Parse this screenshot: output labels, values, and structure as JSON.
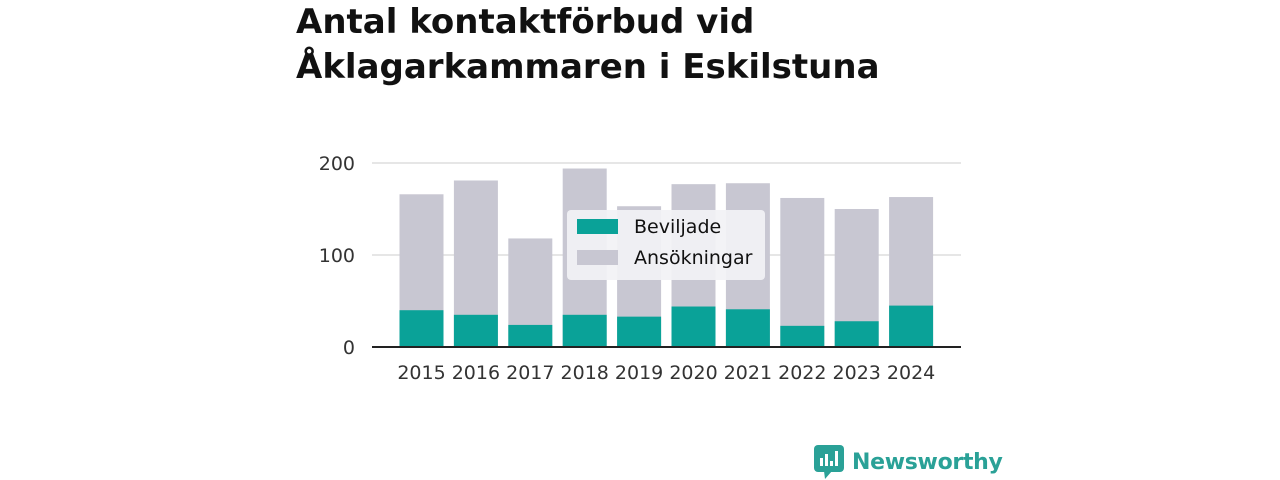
{
  "chart_data": {
    "type": "bar",
    "stacked": false,
    "title_lines": [
      "Antal kontaktförbud vid",
      "Åklagarkammaren i Eskilstuna"
    ],
    "categories": [
      "2015",
      "2016",
      "2017",
      "2018",
      "2019",
      "2020",
      "2021",
      "2022",
      "2023",
      "2024"
    ],
    "series": [
      {
        "name": "Beviljade",
        "color": "#0aa298",
        "values": [
          40,
          35,
          24,
          35,
          33,
          44,
          41,
          23,
          28,
          45
        ]
      },
      {
        "name": "Ansökningar",
        "color": "#c8c7d2",
        "values": [
          166,
          181,
          118,
          194,
          153,
          177,
          178,
          162,
          150,
          163
        ]
      }
    ],
    "ylim": [
      0,
      200
    ],
    "yticks": [
      "0",
      "100",
      "200"
    ],
    "grid": true,
    "legend_position": "center overlay"
  },
  "brand": {
    "name": "Newsworthy",
    "icon": "newsworthy-logo-icon",
    "color": "#2aa197"
  }
}
